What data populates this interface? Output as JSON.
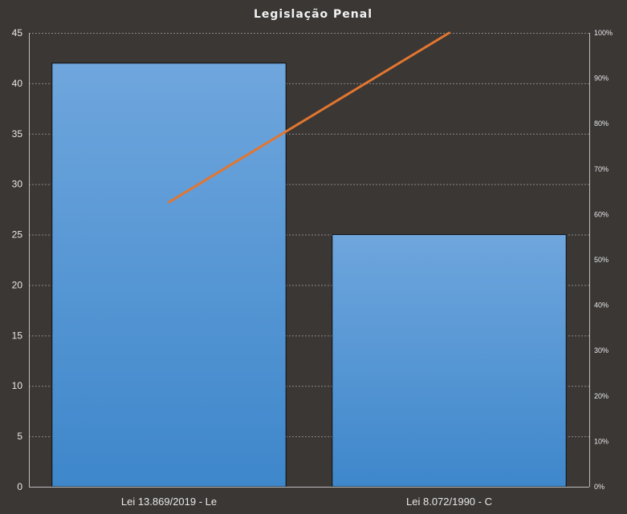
{
  "chart_data": {
    "type": "bar",
    "title": "Legislação Penal",
    "categories": [
      "Lei 13.869/2019 - Le",
      "Lei 8.072/1990 - C"
    ],
    "series": [
      {
        "type": "bar",
        "values": [
          42,
          25
        ]
      },
      {
        "type": "line",
        "axis": "secondary",
        "values": [
          0.627,
          1.0
        ]
      }
    ],
    "ylim": [
      0,
      45
    ],
    "yticks": [
      0,
      5,
      10,
      15,
      20,
      25,
      30,
      35,
      40,
      45
    ],
    "y2lim": [
      0,
      1
    ],
    "y2ticks": [
      "0%",
      "10%",
      "20%",
      "30%",
      "40%",
      "50%",
      "60%",
      "70%",
      "80%",
      "90%",
      "100%"
    ],
    "grid": true,
    "colors": {
      "bar_top": "#6fa6dd",
      "bar_bottom": "#3e87cb",
      "line": "#e2762f",
      "background": "#3a3735"
    }
  }
}
